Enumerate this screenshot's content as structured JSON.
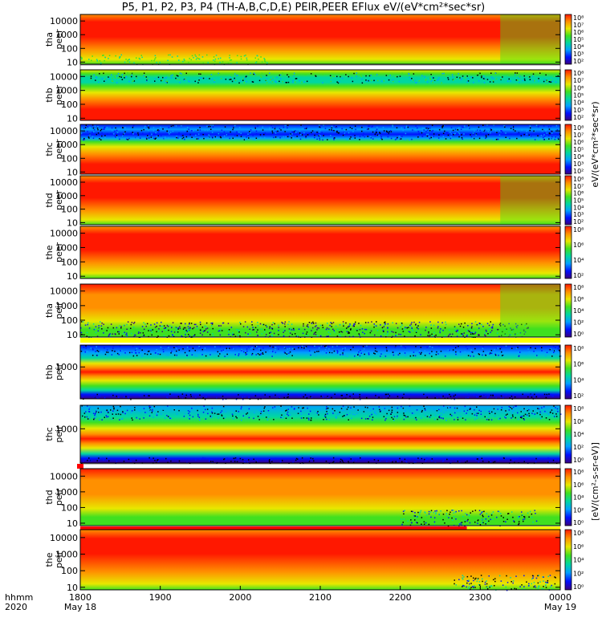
{
  "title": "P5, P1, P2, P3, P4 (TH-A,B,C,D,E) PEIR,PEER EFlux eV/(eV*cm²*sec*sr)",
  "xaxis": {
    "corner_label_1": "hhmm",
    "corner_label_2": "2020",
    "ticks": [
      {
        "value": 0,
        "label": "1800",
        "sublabel": "May 18"
      },
      {
        "value": 60,
        "label": "1900",
        "sublabel": ""
      },
      {
        "value": 120,
        "label": "2000",
        "sublabel": ""
      },
      {
        "value": 180,
        "label": "2100",
        "sublabel": ""
      },
      {
        "value": 240,
        "label": "2200",
        "sublabel": ""
      },
      {
        "value": 300,
        "label": "2300",
        "sublabel": ""
      },
      {
        "value": 360,
        "label": "0000",
        "sublabel": "May 19"
      }
    ]
  },
  "colors": {
    "scale": [
      "#3a0080",
      "#0010ff",
      "#00a0ff",
      "#00d7a0",
      "#40e020",
      "#e8e800",
      "#ff9000",
      "#ff1800"
    ],
    "bar_white": "#ffffff",
    "bar_yellow": "#ffff00",
    "bar_red": "#ff0000"
  },
  "chart_data": {
    "type": "heatmap",
    "x_units": "minutes since 1800 UT on May 18 2020",
    "xlim": [
      0,
      360
    ],
    "panels": [
      {
        "name": "thapeer",
        "line1": "tha",
        "line2": "peer",
        "kind": "peer",
        "ylog": true,
        "ylim": [
          7,
          30000
        ],
        "yticks": [
          10,
          100,
          1000,
          10000
        ],
        "yticklabels": [
          "10",
          "100",
          "1000",
          "10000"
        ],
        "cb_ticks": [
          "10⁸",
          "10⁷",
          "10⁶",
          "10⁵",
          "10⁴",
          "10³",
          "10²"
        ],
        "cb_label": "",
        "mode": "tha_peer",
        "bar": "white"
      },
      {
        "name": "thbpeer",
        "line1": "thb",
        "line2": "peer",
        "kind": "peer",
        "ylog": true,
        "ylim": [
          7,
          30000
        ],
        "yticks": [
          10,
          100,
          1000,
          10000
        ],
        "yticklabels": [
          "10",
          "100",
          "1000",
          "10000"
        ],
        "cb_ticks": [
          "10⁸",
          "10⁷",
          "10⁶",
          "10⁵",
          "10⁴",
          "10³",
          "10²"
        ],
        "cb_label": "",
        "mode": "banded_peer_b",
        "bar": "none"
      },
      {
        "name": "thcpeer",
        "line1": "thc",
        "line2": "peer",
        "kind": "peer",
        "ylog": true,
        "ylim": [
          7,
          30000
        ],
        "yticks": [
          10,
          100,
          1000,
          10000
        ],
        "yticklabels": [
          "10",
          "100",
          "1000",
          "10000"
        ],
        "cb_ticks": [
          "10⁸",
          "10⁷",
          "10⁶",
          "10⁵",
          "10⁴",
          "10³",
          "10²"
        ],
        "cb_label": "",
        "mode": "banded_peer_c",
        "bar": "none"
      },
      {
        "name": "thdpeer",
        "line1": "thd",
        "line2": "peer",
        "kind": "peer",
        "ylog": true,
        "ylim": [
          7,
          30000
        ],
        "yticks": [
          10,
          100,
          1000,
          10000
        ],
        "yticklabels": [
          "10",
          "100",
          "1000",
          "10000"
        ],
        "cb_ticks": [
          "10⁸",
          "10⁷",
          "10⁶",
          "10⁵",
          "10⁴",
          "10³",
          "10²"
        ],
        "cb_label": "",
        "mode": "thd_peer",
        "bar": "none"
      },
      {
        "name": "thepeer",
        "line1": "the",
        "line2": "peer",
        "kind": "peer",
        "ylog": true,
        "ylim": [
          7,
          30000
        ],
        "yticks": [
          10,
          100,
          1000,
          10000
        ],
        "yticklabels": [
          "10",
          "100",
          "1000",
          "10000"
        ],
        "cb_ticks": [
          "10⁸",
          "10⁶",
          "10⁴",
          "10²"
        ],
        "cb_label": "",
        "mode": "the_peer",
        "bar": "none"
      },
      {
        "name": "thapeir",
        "line1": "tha",
        "line2": "peir",
        "kind": "peir",
        "ylog": true,
        "ylim": [
          7,
          30000
        ],
        "yticks": [
          10,
          100,
          1000,
          10000
        ],
        "yticklabels": [
          "10",
          "100",
          "1000",
          "10000"
        ],
        "cb_ticks": [
          "10⁸",
          "10⁶",
          "10⁴",
          "10²",
          "10⁰"
        ],
        "cb_label": "",
        "mode": "peir_noisy",
        "bar": "yellow"
      },
      {
        "name": "thbpeir",
        "line1": "thb",
        "line2": "peir",
        "kind": "peir",
        "ylog": true,
        "ylim": [
          7,
          30000
        ],
        "yticks": [
          1000
        ],
        "yticklabels": [
          "1000"
        ],
        "cb_ticks": [
          "10⁸",
          "10⁶",
          "10⁴",
          "10²"
        ],
        "cb_label": "",
        "mode": "banded_peir_b",
        "bar": "none"
      },
      {
        "name": "thcpeir",
        "line1": "thc",
        "line2": "peir",
        "kind": "peir",
        "ylog": true,
        "ylim": [
          7,
          30000
        ],
        "yticks": [
          1000
        ],
        "yticklabels": [
          "1000"
        ],
        "cb_ticks": [
          "10⁸",
          "10⁶",
          "10⁴",
          "10²",
          "10⁰"
        ],
        "cb_label": "",
        "mode": "banded_peir_c",
        "bar": "white_redstart"
      },
      {
        "name": "thdpeir",
        "line1": "thd",
        "line2": "peir",
        "kind": "peir",
        "ylog": true,
        "ylim": [
          7,
          30000
        ],
        "yticks": [
          10,
          100,
          1000,
          10000
        ],
        "yticklabels": [
          "10",
          "100",
          "1000",
          "10000"
        ],
        "cb_ticks": [
          "10⁸",
          "10⁶",
          "10⁴",
          "10²",
          "10⁰"
        ],
        "cb_label": "",
        "mode": "peir_noisy_d",
        "bar": "red_yellow"
      },
      {
        "name": "thepeir",
        "line1": "the",
        "line2": "peir",
        "kind": "peir",
        "ylog": true,
        "ylim": [
          7,
          30000
        ],
        "yticks": [
          10,
          100,
          1000,
          10000
        ],
        "yticklabels": [
          "10",
          "100",
          "1000",
          "10000"
        ],
        "cb_ticks": [
          "10⁸",
          "10⁶",
          "10⁴",
          "10²",
          "10⁰"
        ],
        "cb_label": "[eV/(cm²-s-sr-eV)]",
        "mode": "the_peir",
        "bar": "none"
      }
    ],
    "peer_cb_label": "eV/(eV*cm²*sec*sr)"
  }
}
